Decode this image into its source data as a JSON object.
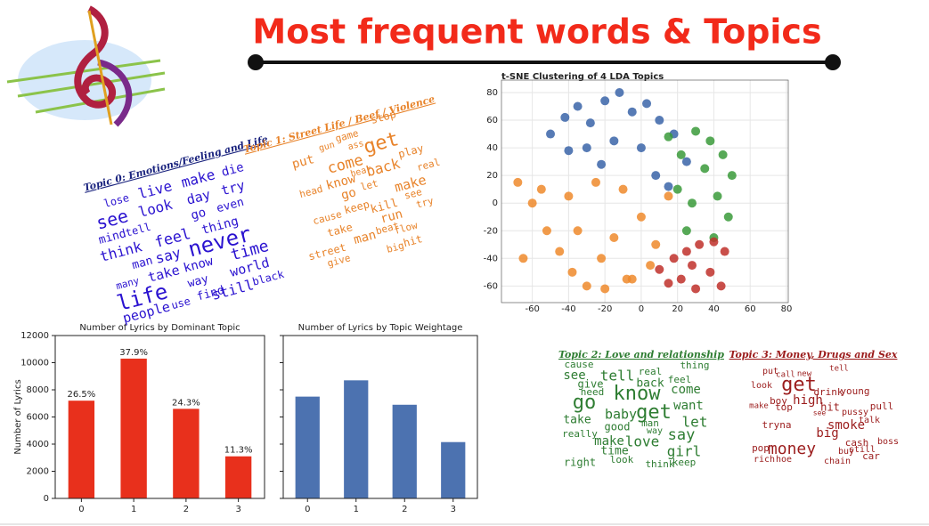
{
  "title": "Most frequent words & Topics",
  "chart_data": [
    {
      "type": "bar",
      "title": "Number of Lyrics by Dominant Topic",
      "ylabel": "Number of Lyrics",
      "categories": [
        "0",
        "1",
        "2",
        "3"
      ],
      "values": [
        7200,
        10300,
        6600,
        3100
      ],
      "annotations": [
        "26.5%",
        "37.9%",
        "24.3%",
        "11.3%"
      ],
      "color": "#e8301c",
      "ylim": [
        0,
        12000
      ],
      "yticks": [
        0,
        2000,
        4000,
        6000,
        8000,
        10000,
        12000
      ]
    },
    {
      "type": "bar",
      "title": "Number of Lyrics by Topic Weightage",
      "categories": [
        "0",
        "1",
        "2",
        "3"
      ],
      "values": [
        7500,
        8700,
        6900,
        4150
      ],
      "color": "#4c72b0",
      "ylim": [
        0,
        12000
      ],
      "yticks": [
        0,
        2000,
        4000,
        6000,
        8000,
        10000,
        12000
      ],
      "show_ytick_labels": false
    },
    {
      "type": "scatter",
      "title": "t-SNE Clustering of 4 LDA Topics",
      "xlim": [
        -77,
        81
      ],
      "ylim": [
        -72,
        89
      ],
      "xticks": [
        -60,
        -40,
        -20,
        0,
        20,
        40,
        60,
        80
      ],
      "yticks": [
        -60,
        -40,
        -20,
        0,
        20,
        40,
        60,
        80
      ],
      "grid": true,
      "series": [
        {
          "color": "#3a64a8",
          "x": [
            -50,
            -42,
            -35,
            -28,
            -20,
            -12,
            -5,
            3,
            10,
            18,
            25,
            -30,
            -15,
            0,
            -40,
            -22,
            8,
            15
          ],
          "values": [
            50,
            62,
            70,
            58,
            74,
            80,
            66,
            72,
            60,
            50,
            30,
            40,
            45,
            40,
            38,
            28,
            20,
            12
          ]
        },
        {
          "color": "#ef8a2c",
          "x": [
            -68,
            -60,
            -52,
            -45,
            -38,
            -30,
            -22,
            -15,
            -8,
            0,
            8,
            15,
            -55,
            -40,
            -25,
            -10,
            5,
            -65,
            -35,
            -20,
            -5
          ],
          "values": [
            15,
            0,
            -20,
            -35,
            -50,
            -60,
            -40,
            -25,
            -55,
            -10,
            -30,
            5,
            10,
            5,
            15,
            10,
            -45,
            -40,
            -20,
            -62,
            -55
          ]
        },
        {
          "color": "#3a9a3a",
          "x": [
            15,
            22,
            30,
            38,
            45,
            50,
            20,
            28,
            35,
            42,
            48,
            25,
            40
          ],
          "values": [
            48,
            35,
            52,
            45,
            35,
            20,
            10,
            0,
            25,
            5,
            -10,
            -20,
            -25
          ]
        },
        {
          "color": "#c0302a",
          "x": [
            10,
            18,
            25,
            32,
            40,
            46,
            15,
            22,
            30,
            38,
            28,
            44
          ],
          "values": [
            -48,
            -40,
            -35,
            -30,
            -28,
            -35,
            -58,
            -55,
            -62,
            -50,
            -45,
            -60
          ]
        }
      ]
    }
  ],
  "wordclouds": [
    {
      "title": "Topic 0: Emotions/Feeling and Life",
      "color": "#2a12d0",
      "words": [
        "lose",
        "live",
        "make",
        "die",
        "see",
        "look",
        "day",
        "try",
        "mind",
        "tell",
        "go",
        "even",
        "think",
        "feel",
        "thing",
        "man",
        "say",
        "never",
        "many",
        "take",
        "know",
        "time",
        "life",
        "way",
        "world",
        "find",
        "use",
        "people",
        "still",
        "black"
      ]
    },
    {
      "title": "Topic 1: Street Life / Beef / Violence",
      "color": "#e8832a",
      "words": [
        "stop",
        "put",
        "gun",
        "game",
        "ass",
        "get",
        "come",
        "play",
        "head",
        "know",
        "hear",
        "back",
        "real",
        "go",
        "let",
        "make",
        "cause",
        "keep",
        "kill",
        "see",
        "take",
        "run",
        "try",
        "street",
        "man",
        "beat",
        "flow",
        "give",
        "big",
        "hit"
      ]
    },
    {
      "title": "Topic 2: Love and relationship",
      "color": "#2e7d32",
      "words": [
        "cause",
        "thing",
        "see",
        "tell",
        "real",
        "feel",
        "give",
        "back",
        "need",
        "know",
        "come",
        "go",
        "want",
        "baby",
        "get",
        "take",
        "man",
        "let",
        "good",
        "way",
        "say",
        "really",
        "make",
        "love",
        "girl",
        "time",
        "right",
        "look",
        "think",
        "keep"
      ]
    },
    {
      "title": "Topic 3: Money, Drugs and Sex",
      "color": "#9b1c1c",
      "words": [
        "put",
        "call",
        "new",
        "tell",
        "look",
        "get",
        "drink",
        "young",
        "boy",
        "high",
        "make",
        "top",
        "hit",
        "pull",
        "see",
        "pussy",
        "talk",
        "tryna",
        "smoke",
        "big",
        "cash",
        "boss",
        "pop",
        "money",
        "buy",
        "still",
        "rich",
        "hoe",
        "chain",
        "car"
      ]
    }
  ]
}
